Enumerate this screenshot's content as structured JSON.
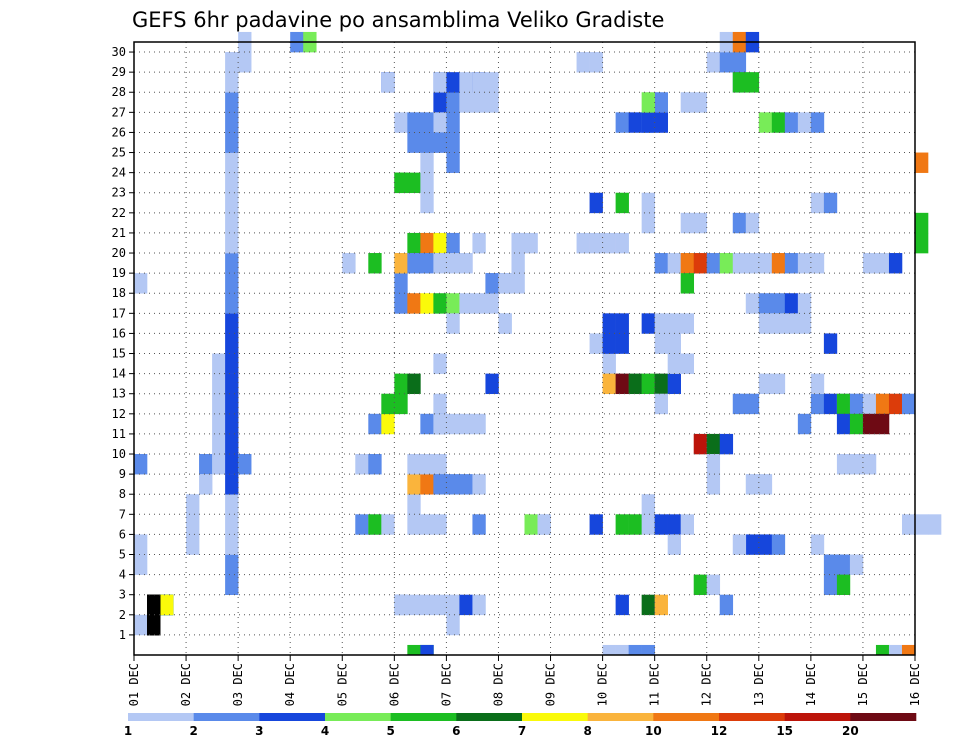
{
  "chart_data": {
    "type": "heatmap",
    "title": "GEFS 6hr padavine po ansamblima Veliko Gradiste",
    "x_tick_labels": [
      "01 DEC",
      "02 DEC",
      "03 DEC",
      "04 DEC",
      "05 DEC",
      "06 DEC",
      "07 DEC",
      "08 DEC",
      "09 DEC",
      "10 DEC",
      "11 DEC",
      "12 DEC",
      "13 DEC",
      "14 DEC",
      "15 DEC",
      "16 DEC"
    ],
    "y_tick_labels": [
      "1",
      "2",
      "3",
      "4",
      "5",
      "6",
      "7",
      "8",
      "9",
      "10",
      "11",
      "12",
      "13",
      "14",
      "15",
      "16",
      "17",
      "18",
      "19",
      "20",
      "21",
      "22",
      "23",
      "24",
      "25",
      "26",
      "27",
      "28",
      "29",
      "30"
    ],
    "x_range": [
      "01 DEC 00Z",
      "16 DEC 00Z"
    ],
    "x_step_hours": 6,
    "y_range": [
      0,
      30
    ],
    "grid": true,
    "legend": {
      "placement": "bottom",
      "labels": [
        "1",
        "2",
        "3",
        "4",
        "5",
        "6",
        "7",
        "8",
        "10",
        "12",
        "15",
        "20"
      ],
      "colors": [
        "#b4c8f4",
        "#5a8aea",
        "#1646dc",
        "#78ec58",
        "#1cbe22",
        "#0a6e1a",
        "#fafa0a",
        "#fab43c",
        "#f07814",
        "#dc3c0a",
        "#bc140a",
        "#6e0a14"
      ]
    },
    "cells": [
      [
        0,
        1,
        1
      ],
      [
        2,
        2,
        2
      ],
      [
        2,
        3,
        2
      ],
      [
        2,
        4,
        2
      ],
      [
        2,
        5,
        2
      ],
      [
        2,
        6,
        2
      ],
      [
        2,
        7,
        2
      ],
      [
        1,
        1,
        2
      ],
      [
        1,
        2,
        2
      ],
      [
        1,
        3,
        2
      ],
      [
        1,
        4,
        2
      ],
      [
        1,
        5,
        2
      ],
      [
        1,
        6,
        2
      ],
      [
        1,
        7,
        2
      ],
      [
        1,
        8,
        2
      ],
      [
        1,
        9,
        1
      ],
      [
        1,
        10,
        1
      ],
      [
        1,
        11,
        1
      ],
      [
        1,
        12,
        1
      ],
      [
        1,
        13,
        1
      ],
      [
        1,
        14,
        1
      ],
      [
        1,
        15,
        1
      ],
      [
        1,
        16,
        1
      ],
      [
        1,
        17,
        1
      ],
      [
        1,
        18,
        1
      ],
      [
        1,
        19,
        2
      ],
      [
        1,
        20,
        1
      ],
      [
        1,
        21,
        1
      ],
      [
        1,
        22,
        1
      ],
      [
        1,
        23,
        1
      ],
      [
        1,
        24,
        1
      ],
      [
        1,
        25,
        2
      ],
      [
        1,
        26,
        2
      ],
      [
        1,
        27,
        2
      ],
      [
        1,
        28,
        1
      ],
      [
        1,
        29,
        1
      ],
      [
        1,
        30,
        1
      ],
      [
        0,
        1,
        4
      ],
      [
        0,
        1,
        5
      ],
      [
        0,
        2,
        9
      ],
      [
        0,
        1,
        18
      ],
      [
        4,
        1,
        5
      ],
      [
        4,
        1,
        6
      ],
      [
        4,
        1,
        7
      ],
      [
        5,
        1,
        9
      ],
      [
        5,
        2,
        9
      ],
      [
        5,
        1,
        8
      ],
      [
        6,
        1,
        9
      ],
      [
        6,
        1,
        10
      ],
      [
        6,
        1,
        11
      ],
      [
        6,
        1,
        12
      ],
      [
        6,
        1,
        13
      ],
      [
        6,
        1,
        14
      ],
      [
        7,
        2,
        3
      ],
      [
        7,
        2,
        4
      ],
      [
        7,
        1,
        5
      ],
      [
        7,
        1,
        6
      ],
      [
        7,
        1,
        7
      ],
      [
        7,
        3,
        8
      ],
      [
        7,
        3,
        9
      ],
      [
        7,
        3,
        10
      ],
      [
        7,
        3,
        11
      ],
      [
        7,
        3,
        12
      ],
      [
        7,
        3,
        13
      ],
      [
        7,
        3,
        14
      ],
      [
        7,
        3,
        15
      ],
      [
        7,
        3,
        16
      ],
      [
        7,
        2,
        17
      ],
      [
        7,
        2,
        18
      ],
      [
        7,
        2,
        19
      ],
      [
        7,
        1,
        20
      ],
      [
        7,
        1,
        21
      ],
      [
        7,
        1,
        22
      ],
      [
        7,
        1,
        23
      ],
      [
        7,
        1,
        24
      ],
      [
        7,
        2,
        25
      ],
      [
        7,
        2,
        26
      ],
      [
        7,
        2,
        27
      ],
      [
        7,
        1,
        28
      ],
      [
        7,
        1,
        29
      ],
      [
        8,
        2,
        9
      ],
      [
        8,
        1,
        29
      ],
      [
        8,
        1,
        30
      ],
      [
        12,
        2,
        30
      ],
      [
        13,
        4,
        30
      ],
      [
        16,
        1,
        19
      ],
      [
        17,
        2,
        6
      ],
      [
        17,
        1,
        9
      ],
      [
        18,
        1,
        6
      ],
      [
        18,
        2,
        9
      ],
      [
        18,
        2,
        11
      ],
      [
        18,
        5,
        6
      ],
      [
        18,
        5,
        19
      ],
      [
        19,
        3,
        28
      ],
      [
        19,
        1,
        28
      ],
      [
        19,
        7,
        11
      ],
      [
        19,
        5,
        12
      ],
      [
        19,
        1,
        6
      ],
      [
        20,
        5,
        12
      ],
      [
        20,
        5,
        13
      ],
      [
        20,
        1,
        17
      ],
      [
        20,
        2,
        18
      ],
      [
        20,
        1,
        19
      ],
      [
        20,
        8,
        19
      ],
      [
        20,
        2,
        2
      ],
      [
        20,
        1,
        2
      ],
      [
        20,
        1,
        26
      ],
      [
        20,
        2,
        17
      ],
      [
        20,
        5,
        23
      ],
      [
        20,
        5,
        23
      ],
      [
        21,
        1,
        2
      ],
      [
        21,
        1,
        6
      ],
      [
        21,
        1,
        7
      ],
      [
        21,
        8,
        8
      ],
      [
        21,
        9,
        17
      ],
      [
        21,
        5,
        20
      ],
      [
        21,
        6,
        13
      ],
      [
        21,
        2,
        25
      ],
      [
        21,
        2,
        26
      ],
      [
        21,
        5,
        23
      ],
      [
        21,
        2,
        19
      ],
      [
        21,
        1,
        9
      ],
      [
        21,
        5,
        0
      ],
      [
        22,
        1,
        2
      ],
      [
        22,
        1,
        6
      ],
      [
        22,
        9,
        8
      ],
      [
        22,
        1,
        9
      ],
      [
        22,
        7,
        17
      ],
      [
        22,
        9,
        20
      ],
      [
        22,
        2,
        19
      ],
      [
        22,
        1,
        24
      ],
      [
        22,
        2,
        25
      ],
      [
        22,
        2,
        26
      ],
      [
        22,
        1,
        23
      ],
      [
        22,
        1,
        22
      ],
      [
        22,
        2,
        11
      ],
      [
        22,
        5,
        0
      ],
      [
        22,
        3,
        0
      ],
      [
        23,
        3,
        26
      ],
      [
        23,
        3,
        27
      ],
      [
        23,
        2,
        28
      ],
      [
        23,
        7,
        20
      ],
      [
        23,
        5,
        17
      ],
      [
        23,
        1,
        19
      ],
      [
        23,
        1,
        9
      ],
      [
        23,
        2,
        8
      ],
      [
        23,
        1,
        12
      ],
      [
        23,
        1,
        14
      ],
      [
        23,
        1,
        26
      ],
      [
        23,
        2,
        25
      ],
      [
        23,
        1,
        6
      ],
      [
        23,
        2,
        11
      ],
      [
        23,
        1,
        28
      ],
      [
        23,
        1,
        2
      ],
      [
        23,
        1,
        11
      ],
      [
        24,
        2,
        26
      ],
      [
        24,
        2,
        27
      ],
      [
        24,
        3,
        28
      ],
      [
        24,
        4,
        17
      ],
      [
        24,
        2,
        20
      ],
      [
        24,
        2,
        8
      ],
      [
        24,
        1,
        19
      ],
      [
        24,
        2,
        24
      ],
      [
        24,
        2,
        25
      ],
      [
        24,
        1,
        16
      ],
      [
        24,
        1,
        11
      ],
      [
        24,
        1,
        1
      ],
      [
        24,
        1,
        2
      ],
      [
        25,
        1,
        17
      ],
      [
        25,
        2,
        8
      ],
      [
        25,
        1,
        11
      ],
      [
        25,
        3,
        2
      ],
      [
        25,
        1,
        19
      ],
      [
        25,
        1,
        27
      ],
      [
        25,
        1,
        28
      ],
      [
        26,
        1,
        17
      ],
      [
        26,
        1,
        8
      ],
      [
        26,
        2,
        6
      ],
      [
        26,
        1,
        2
      ],
      [
        26,
        1,
        11
      ],
      [
        26,
        3,
        28
      ],
      [
        26,
        1,
        27
      ],
      [
        26,
        1,
        28
      ],
      [
        26,
        1,
        20
      ],
      [
        27,
        1,
        28
      ],
      [
        27,
        1,
        27
      ],
      [
        27,
        3,
        13
      ],
      [
        27,
        2,
        18
      ],
      [
        27,
        1,
        17
      ],
      [
        27,
        2,
        18
      ],
      [
        28,
        1,
        16
      ],
      [
        28,
        2,
        18
      ],
      [
        28,
        1,
        18
      ],
      [
        28,
        1,
        16
      ],
      [
        29,
        1,
        20
      ],
      [
        29,
        1,
        18
      ],
      [
        29,
        1,
        19
      ],
      [
        29,
        1,
        20
      ],
      [
        30,
        1,
        20
      ],
      [
        30,
        4,
        6
      ],
      [
        31,
        1,
        6
      ],
      [
        31,
        1,
        6
      ],
      [
        34,
        1,
        29
      ],
      [
        35,
        1,
        29
      ],
      [
        35,
        1,
        20
      ],
      [
        36,
        1,
        20
      ],
      [
        37,
        1,
        20
      ],
      [
        34,
        1,
        20
      ],
      [
        35,
        1,
        15
      ],
      [
        36,
        1,
        15
      ],
      [
        36,
        1,
        14
      ],
      [
        35,
        3,
        22
      ],
      [
        35,
        3,
        6
      ],
      [
        36,
        3,
        15
      ],
      [
        36,
        3,
        16
      ],
      [
        37,
        3,
        15
      ],
      [
        37,
        3,
        16
      ],
      [
        36,
        8,
        13
      ],
      [
        37,
        12,
        13
      ],
      [
        38,
        6,
        13
      ],
      [
        37,
        3,
        2
      ],
      [
        37,
        5,
        22
      ],
      [
        37,
        2,
        26
      ],
      [
        38,
        3,
        26
      ],
      [
        37,
        5,
        6
      ],
      [
        38,
        5,
        6
      ],
      [
        36,
        1,
        0
      ],
      [
        37,
        1,
        0
      ],
      [
        38,
        2,
        0
      ],
      [
        39,
        2,
        0
      ],
      [
        39,
        2,
        26
      ],
      [
        40,
        1,
        26
      ],
      [
        40,
        3,
        26
      ],
      [
        39,
        3,
        26
      ],
      [
        40,
        2,
        27
      ],
      [
        39,
        4,
        27
      ],
      [
        39,
        5,
        13
      ],
      [
        40,
        6,
        13
      ],
      [
        41,
        3,
        13
      ],
      [
        40,
        1,
        12
      ],
      [
        39,
        3,
        16
      ],
      [
        40,
        1,
        16
      ],
      [
        41,
        1,
        16
      ],
      [
        42,
        1,
        16
      ],
      [
        40,
        1,
        15
      ],
      [
        41,
        1,
        15
      ],
      [
        42,
        1,
        14
      ],
      [
        41,
        1,
        14
      ],
      [
        39,
        1,
        7
      ],
      [
        39,
        1,
        6
      ],
      [
        40,
        3,
        6
      ],
      [
        41,
        3,
        6
      ],
      [
        42,
        1,
        6
      ],
      [
        39,
        1,
        22
      ],
      [
        39,
        1,
        21
      ],
      [
        39,
        6,
        2
      ],
      [
        40,
        8,
        2
      ],
      [
        40,
        2,
        19
      ],
      [
        41,
        1,
        19
      ],
      [
        41,
        1,
        5
      ],
      [
        42,
        1,
        27
      ],
      [
        43,
        1,
        27
      ],
      [
        42,
        1,
        21
      ],
      [
        42,
        9,
        19
      ],
      [
        43,
        10,
        19
      ],
      [
        44,
        2,
        19
      ],
      [
        45,
        4,
        19
      ],
      [
        46,
        1,
        19
      ],
      [
        47,
        1,
        19
      ],
      [
        42,
        5,
        18
      ],
      [
        43,
        11,
        10
      ],
      [
        44,
        6,
        10
      ],
      [
        45,
        3,
        10
      ],
      [
        44,
        1,
        9
      ],
      [
        44,
        1,
        8
      ],
      [
        43,
        5,
        3
      ],
      [
        44,
        1,
        3
      ],
      [
        45,
        2,
        2
      ],
      [
        44,
        1,
        29
      ],
      [
        45,
        2,
        29
      ],
      [
        46,
        2,
        29
      ],
      [
        45,
        1,
        30
      ],
      [
        46,
        9,
        30
      ],
      [
        47,
        3,
        30
      ],
      [
        46,
        2,
        28
      ],
      [
        47,
        5,
        28
      ],
      [
        46,
        5,
        28
      ],
      [
        43,
        1,
        21
      ],
      [
        46,
        2,
        21
      ],
      [
        47,
        1,
        21
      ],
      [
        46,
        2,
        12
      ],
      [
        47,
        2,
        12
      ],
      [
        47,
        1,
        8
      ],
      [
        48,
        1,
        8
      ],
      [
        47,
        3,
        5
      ],
      [
        48,
        3,
        5
      ],
      [
        49,
        2,
        5
      ],
      [
        46,
        1,
        5
      ],
      [
        47,
        1,
        17
      ],
      [
        48,
        2,
        17
      ],
      [
        49,
        2,
        17
      ],
      [
        50,
        3,
        17
      ],
      [
        51,
        1,
        17
      ],
      [
        48,
        1,
        16
      ],
      [
        49,
        1,
        16
      ],
      [
        50,
        1,
        16
      ],
      [
        51,
        1,
        16
      ],
      [
        48,
        1,
        19
      ],
      [
        49,
        9,
        19
      ],
      [
        50,
        2,
        19
      ],
      [
        51,
        1,
        19
      ],
      [
        52,
        1,
        19
      ],
      [
        48,
        4,
        26
      ],
      [
        49,
        5,
        26
      ],
      [
        50,
        2,
        26
      ],
      [
        51,
        1,
        26
      ],
      [
        52,
        2,
        26
      ],
      [
        48,
        1,
        13
      ],
      [
        49,
        1,
        13
      ],
      [
        51,
        2,
        11
      ],
      [
        52,
        2,
        12
      ],
      [
        53,
        3,
        12
      ],
      [
        54,
        1,
        12
      ],
      [
        52,
        1,
        13
      ],
      [
        52,
        1,
        22
      ],
      [
        53,
        2,
        22
      ],
      [
        52,
        1,
        5
      ],
      [
        53,
        3,
        15
      ],
      [
        53,
        2,
        4
      ],
      [
        54,
        2,
        4
      ],
      [
        55,
        1,
        4
      ],
      [
        53,
        2,
        3
      ],
      [
        54,
        5,
        3
      ],
      [
        54,
        1,
        9
      ],
      [
        55,
        1,
        9
      ],
      [
        56,
        1,
        9
      ],
      [
        54,
        5,
        12
      ],
      [
        55,
        2,
        12
      ],
      [
        56,
        1,
        12
      ],
      [
        57,
        9,
        12
      ],
      [
        58,
        10,
        12
      ],
      [
        59,
        2,
        12
      ],
      [
        54,
        3,
        11
      ],
      [
        55,
        5,
        11
      ],
      [
        56,
        12,
        11
      ],
      [
        57,
        12,
        11
      ],
      [
        56,
        1,
        19
      ],
      [
        57,
        1,
        19
      ],
      [
        58,
        3,
        19
      ],
      [
        57,
        5,
        0
      ],
      [
        58,
        1,
        0
      ],
      [
        59,
        9,
        0
      ],
      [
        59,
        1,
        6
      ],
      [
        60,
        1,
        6
      ],
      [
        61,
        1,
        6
      ],
      [
        60,
        9,
        24
      ],
      [
        60,
        5,
        20
      ],
      [
        60,
        5,
        21
      ]
    ]
  }
}
